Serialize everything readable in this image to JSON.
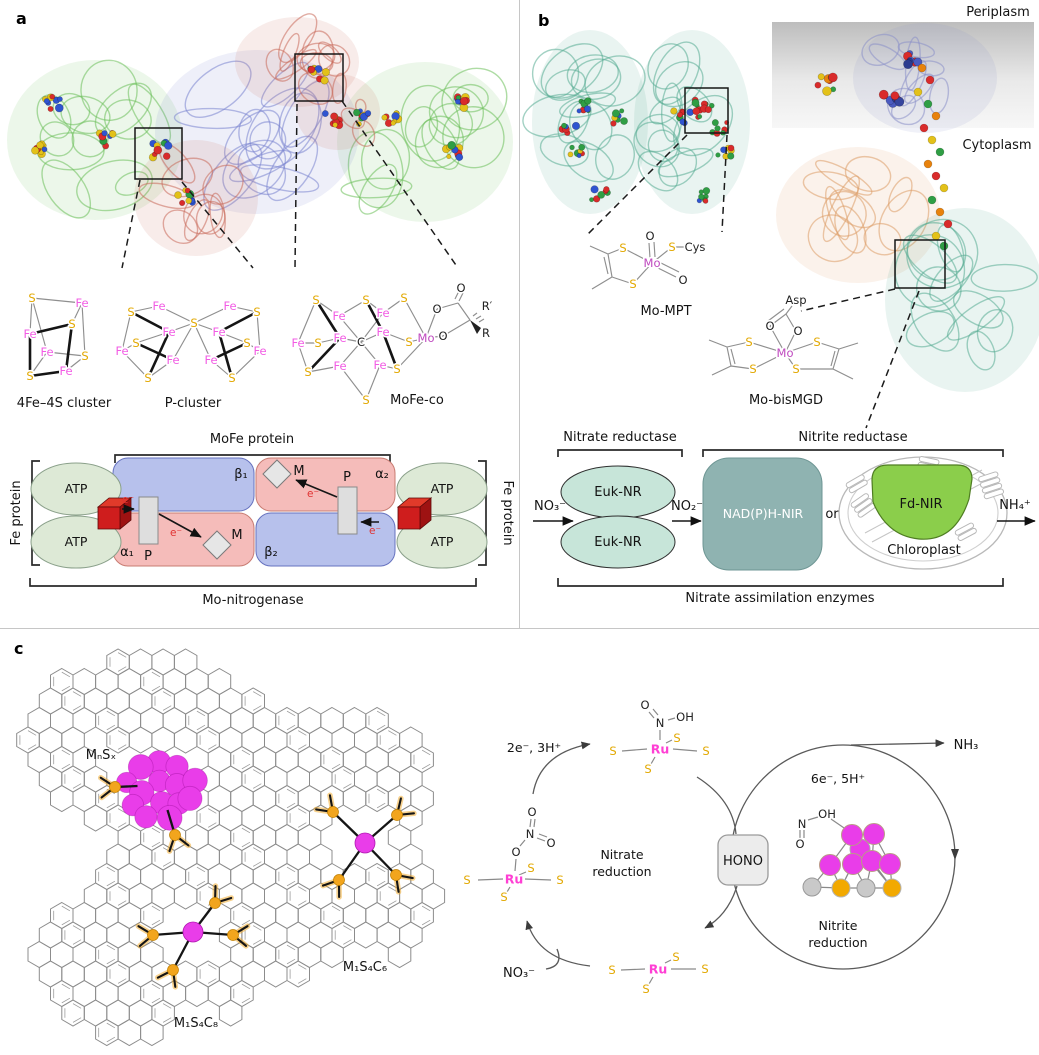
{
  "colors": {
    "fe": "#f25ce4",
    "sulfur": "#e2a800",
    "mo": "#bf49bf",
    "ru": "#ff3fd4",
    "electron": "#e03131",
    "protein_green": "#6cbf5a",
    "protein_blue": "#7a84cf",
    "protein_red": "#c96a5a",
    "protein_teal": "#56ab92",
    "protein_orange": "#dd9c66",
    "tm_blue": "#8a90c8",
    "site_magenta": "#e93de9",
    "site_orange": "#f2a51d",
    "nadph_box": "#8fb3b1",
    "fdnir_green": "#8bce4b",
    "cube_red": "#cf1d1d",
    "membrane": "#bdbdbd"
  },
  "atoms": {
    "fe": "Fe",
    "s": "S",
    "mo": "Mo",
    "ru": "Ru",
    "c": "C",
    "o": "O",
    "n": "N",
    "oh": "OH",
    "cys": "Cys",
    "asp": "Asp",
    "r_prime": "R′",
    "r": "R"
  },
  "panels": {
    "a": {
      "label": "a",
      "cluster_labels": {
        "fe4s4": "4Fe–4S cluster",
        "p": "P-cluster",
        "mofeco": "MoFe-co"
      },
      "schematic": {
        "mofe_protein": "MoFe protein",
        "fe_protein": "Fe protein",
        "mo_nitrogenase": "Mo-nitrogenase",
        "atp": "ATP",
        "alpha1": "α₁",
        "alpha2": "α₂",
        "beta1": "β₁",
        "beta2": "β₂",
        "p": "P",
        "m": "M",
        "electron": "e⁻"
      }
    },
    "b": {
      "label": "b",
      "periplasm": "Periplasm",
      "cytoplasm": "Cytoplasm",
      "mo_mpt_label": "Mo-MPT",
      "mo_bismgd_label": "Mo-bisMGD",
      "schematic": {
        "nitrate_reductase": "Nitrate reductase",
        "nitrite_reductase": "Nitrite reductase",
        "nitrate_assimilation": "Nitrate assimilation enzymes",
        "euk_nr": "Euk-NR",
        "nadph_nir": "NAD(P)H-NIR",
        "or": "or",
        "fd_nir": "Fd-NIR",
        "chloroplast": "Chloroplast",
        "no3": "NO₃⁻",
        "no2": "NO₂⁻",
        "nh4": "NH₄⁺"
      }
    },
    "c": {
      "label": "c",
      "sites": {
        "mnsx": "MₙSₓ",
        "m1s4c6": "M₁S₄C₆",
        "m1s4c8": "M₁S₄C₈"
      },
      "cycle": {
        "step_2e": "2e⁻, 3H⁺",
        "step_6e": "6e⁻, 5H⁺",
        "hono": "HONO",
        "nh3": "NH₃",
        "no3": "NO₃⁻",
        "nitrate_line1": "Nitrate",
        "nitrate_line2": "reduction",
        "nitrite_line1": "Nitrite",
        "nitrite_line2": "reduction"
      }
    }
  }
}
